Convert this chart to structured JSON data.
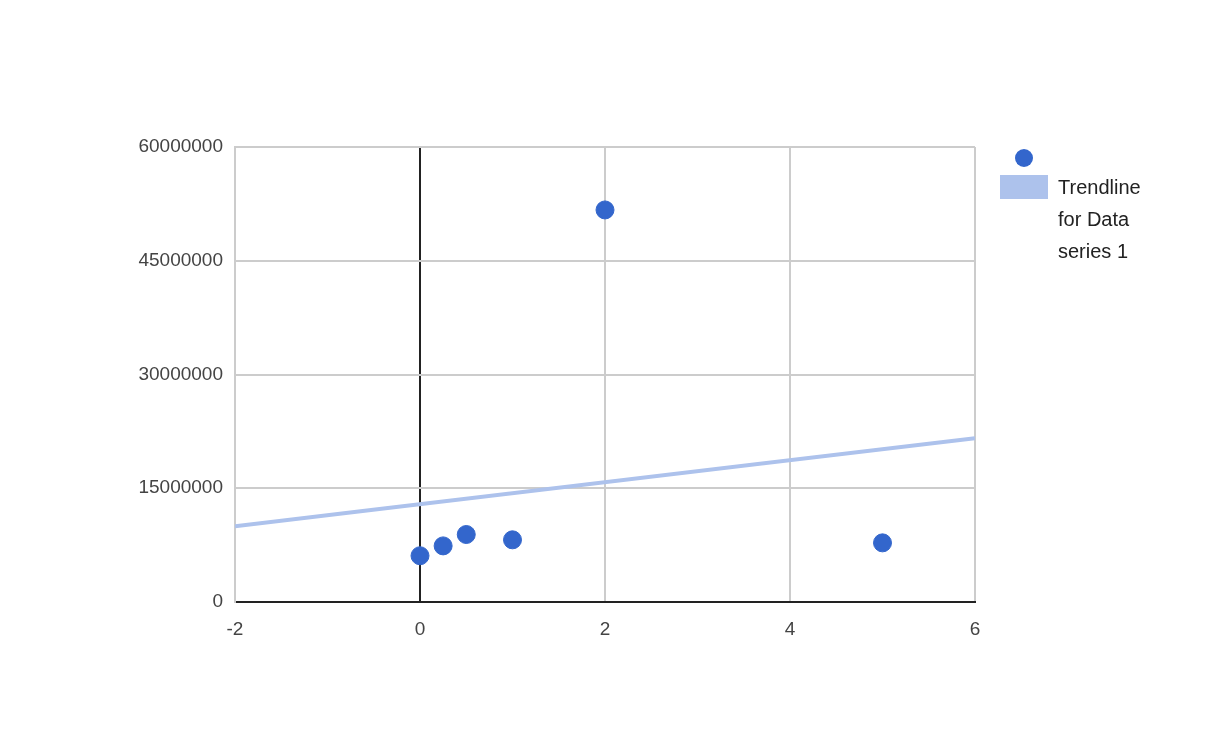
{
  "chart_data": {
    "type": "scatter",
    "series": [
      {
        "color": "#3366cc",
        "marker": "circle",
        "x": [
          0,
          0.25,
          0.5,
          1,
          2,
          5
        ],
        "values": [
          6100000,
          7400000,
          8900000,
          8200000,
          51700000,
          7800000
        ]
      },
      {
        "type": "line",
        "name": "Trendline for Data series 1",
        "color": "#adc2ec",
        "marker": "none",
        "x": [
          -2,
          6
        ],
        "values": [
          10000000,
          21600000
        ]
      }
    ],
    "xlim": [
      -2,
      6
    ],
    "xticks": [
      -2,
      0,
      2,
      4,
      6
    ],
    "ylim": [
      0,
      60000000
    ],
    "yticks": [
      0,
      15000000,
      30000000,
      45000000,
      60000000
    ],
    "grid": true,
    "legend": "top right",
    "line_style": "solid"
  }
}
